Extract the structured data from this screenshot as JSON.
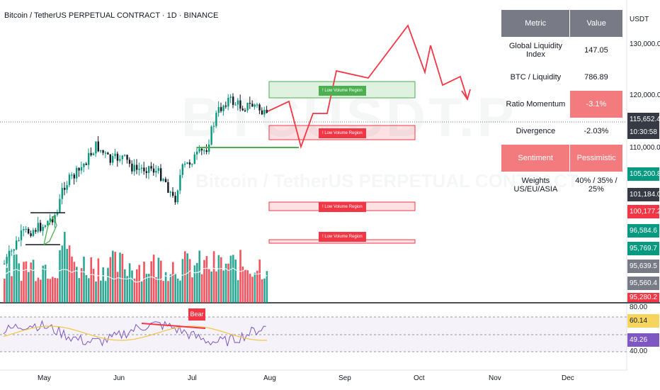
{
  "header": {
    "title": "Bitcoin / TetherUS PERPETUAL CONTRACT · 1D · BINANCE"
  },
  "currency": "USDT",
  "metrics_table": {
    "headers": [
      "Metric",
      "Value"
    ],
    "rows": [
      {
        "metric": "Global Liquidity Index",
        "value": "147.05"
      },
      {
        "metric": "BTC / Liquidity",
        "value": "786.89"
      },
      {
        "metric": "Ratio Momentum",
        "value": "-3.1%"
      },
      {
        "metric": "Divergence",
        "value": "-2.03%"
      },
      {
        "metric": "Sentiment",
        "value": "Pessimistic"
      },
      {
        "metric": "Weights US/EU/ASIA",
        "value": "40% / 35% / 25%"
      }
    ]
  },
  "price_axis": {
    "labels": [
      "130,000.0",
      "120,000.0",
      "110,000.0"
    ],
    "tags": [
      {
        "value": "115,652.4",
        "color": "#363a45"
      },
      {
        "value": "10:30:58",
        "color": "#363a45"
      },
      {
        "value": "105,200.8",
        "color": "#089981"
      },
      {
        "value": "101,184.0",
        "color": "#363a45"
      },
      {
        "value": "100,177.2",
        "color": "#f23645"
      },
      {
        "value": "96,584.6",
        "color": "#089981"
      },
      {
        "value": "95,769.7",
        "color": "#089981"
      },
      {
        "value": "95,639.5",
        "color": "#787b86"
      },
      {
        "value": "95,560.4",
        "color": "#787b86"
      },
      {
        "value": "95,280.2",
        "color": "#f23645"
      }
    ],
    "rsi_labels": {
      "top": "80.00",
      "bottom": "40.00"
    },
    "rsi_tags": [
      {
        "value": "60.14",
        "color": "#f5d55e"
      },
      {
        "value": "49.26",
        "color": "#7e57c2"
      }
    ]
  },
  "time_axis": {
    "labels": [
      "May",
      "Jun",
      "Jul",
      "Aug",
      "Sep",
      "Oct",
      "Nov",
      "Dec"
    ]
  },
  "low_volume_regions": [
    {
      "label": "! Low Volume Region",
      "color": "#4caf50"
    },
    {
      "label": "! Low Volume Region",
      "color": "#f23645"
    },
    {
      "label": "! Low Volume Region",
      "color": "#f23645"
    },
    {
      "label": "! Low Volume Region",
      "color": "#f23645"
    }
  ],
  "rsi_panel": {
    "bear_label": "Bear",
    "line_color": "#7e57c2",
    "ma_color": "#f5c542"
  },
  "colors": {
    "up": "#089981",
    "down": "#f23645",
    "projection": "#f23645"
  }
}
